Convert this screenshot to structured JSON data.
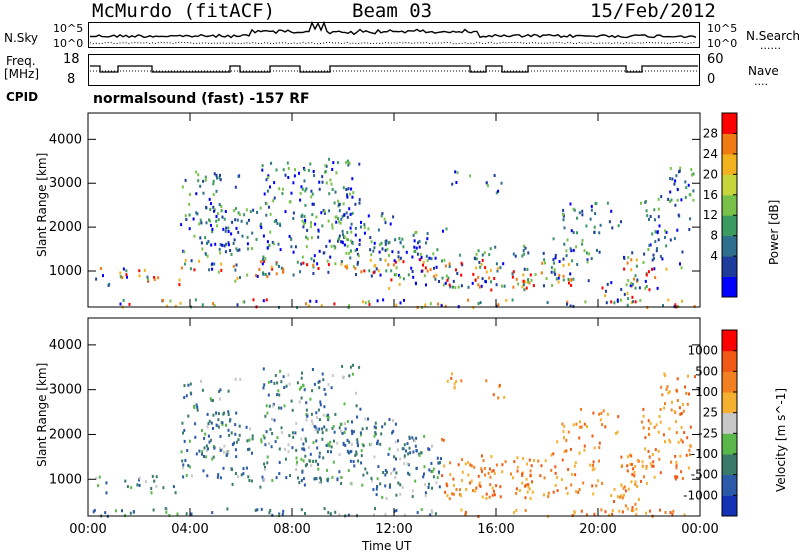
{
  "header": {
    "station": "McMurdo (fitACF)",
    "beam": "Beam 03",
    "date": "15/Feb/2012"
  },
  "noise_panel": {
    "left_label": "N.Sky",
    "right_label": "N.Search",
    "right_legend": "......",
    "left_ticks": [
      "10^5",
      "10^0"
    ],
    "right_ticks": [
      "10^5",
      "10^0"
    ]
  },
  "freq_panel": {
    "left_label_line1": "Freq.",
    "left_label_line2": "[MHz]",
    "right_label": "Nave",
    "right_legend": "....",
    "left_ticks": [
      "18",
      "8"
    ],
    "right_ticks": [
      "60",
      "0"
    ]
  },
  "cpid": {
    "label": "CPID",
    "mode": "normalsound (fast) -157 RF"
  },
  "chart_data": [
    {
      "type": "heatmap",
      "title": "",
      "xlabel": "Time UT",
      "ylabel": "Slant Range [km]",
      "x_ticks": [
        "00:00",
        "04:00",
        "08:00",
        "12:00",
        "16:00",
        "20:00",
        "00:00"
      ],
      "y_ticks": [
        "1000",
        "2000",
        "3000",
        "4000"
      ],
      "ylim": [
        180,
        4600
      ],
      "colorbar": {
        "label": "Power [dB]",
        "ticks": [
          "28",
          "24",
          "20",
          "16",
          "12",
          "8",
          "4"
        ],
        "colors": [
          "#0000ff",
          "#1d3c9c",
          "#2e6e8e",
          "#3a9a60",
          "#79c24a",
          "#c6d63a",
          "#f2b21e",
          "#f07a14",
          "#ff0000"
        ]
      }
    },
    {
      "type": "heatmap",
      "title": "",
      "xlabel": "Time UT",
      "ylabel": "Slant Range [km]",
      "x_ticks": [
        "00:00",
        "04:00",
        "08:00",
        "12:00",
        "16:00",
        "20:00",
        "00:00"
      ],
      "y_ticks": [
        "1000",
        "2000",
        "3000",
        "4000"
      ],
      "ylim": [
        180,
        4600
      ],
      "colorbar": {
        "label": "Velocity [m s^-1]",
        "ticks": [
          "1000",
          "500",
          "100",
          "25",
          "-25",
          "-100",
          "-500",
          "-1000"
        ],
        "colors": [
          "#1432b4",
          "#2a5aa8",
          "#3a7a6a",
          "#5ab84a",
          "#c8c8c8",
          "#f5b030",
          "#f28020",
          "#f05a14",
          "#ff0000"
        ]
      }
    }
  ]
}
